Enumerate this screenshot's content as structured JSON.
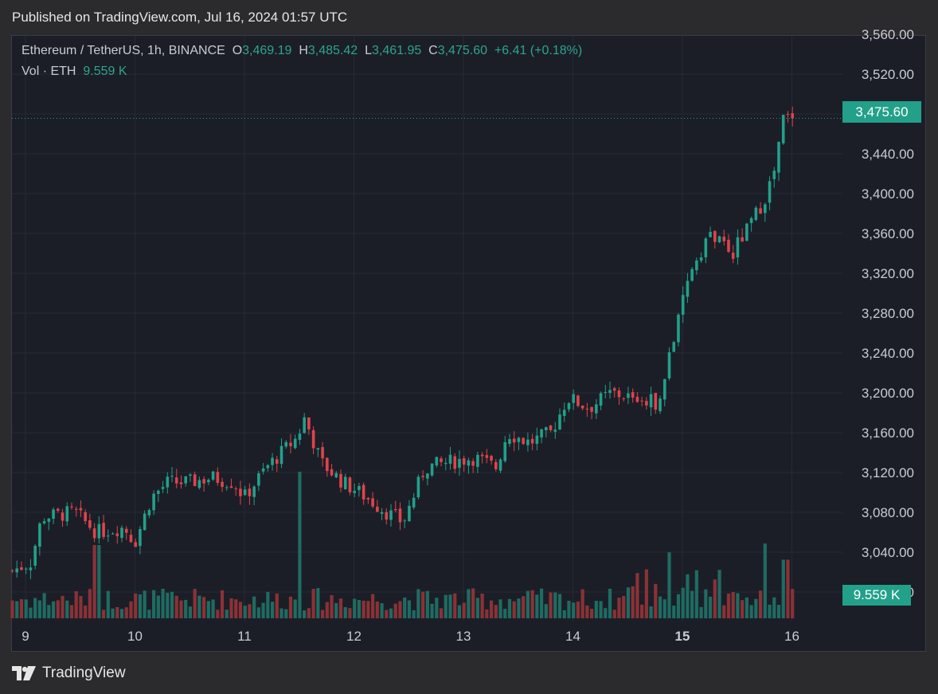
{
  "publish_line": "Published on TradingView.com, Jul 16, 2024 01:57 UTC",
  "legend": {
    "symbol": "Ethereum / TetherUS, 1h, BINANCE",
    "o_label": "O",
    "o_value": "3,469.19",
    "h_label": "H",
    "h_value": "3,485.42",
    "l_label": "L",
    "l_value": "3,461.95",
    "c_label": "C",
    "c_value": "3,475.60",
    "change": "+6.41 (+0.18%)",
    "vol_label": "Vol · ETH",
    "vol_value": "9.559 K"
  },
  "current_price_tag": "3,475.60",
  "volume_tag": "9.559 K",
  "brand": "TradingView",
  "colors": {
    "up": "#22a08a",
    "down": "#e0434b",
    "vol_up": "#1f6b62",
    "vol_down": "#8a3236",
    "grid": "#262a35",
    "axis_text": "#c8cbd2"
  },
  "chart_data": {
    "type": "candlestick",
    "symbol": "Ethereum / TetherUS",
    "interval": "1h",
    "exchange": "BINANCE",
    "x_ticks": [
      "9",
      "10",
      "11",
      "12",
      "13",
      "14",
      "15",
      "16"
    ],
    "y_ticks": [
      "3,560.00",
      "3,520.00",
      "3,480.00",
      "3,440.00",
      "3,400.00",
      "3,360.00",
      "3,320.00",
      "3,280.00",
      "3,240.00",
      "3,200.00",
      "3,160.00",
      "3,120.00",
      "3,080.00",
      "3,040.00",
      "3,000.00"
    ],
    "ylim": [
      2960,
      3560
    ],
    "grid": true,
    "last_close": 3475.6,
    "close_path_keypoints": [
      {
        "day": 8.85,
        "close": 3020
      },
      {
        "day": 9.05,
        "close": 3030
      },
      {
        "day": 9.15,
        "close": 3075
      },
      {
        "day": 9.45,
        "close": 3080
      },
      {
        "day": 9.65,
        "close": 3060
      },
      {
        "day": 9.9,
        "close": 3065
      },
      {
        "day": 10.0,
        "close": 3050
      },
      {
        "day": 10.15,
        "close": 3095
      },
      {
        "day": 10.3,
        "close": 3110
      },
      {
        "day": 10.5,
        "close": 3110
      },
      {
        "day": 10.7,
        "close": 3115
      },
      {
        "day": 10.9,
        "close": 3110
      },
      {
        "day": 11.0,
        "close": 3095
      },
      {
        "day": 11.2,
        "close": 3125
      },
      {
        "day": 11.48,
        "close": 3155
      },
      {
        "day": 11.55,
        "close": 3175
      },
      {
        "day": 11.7,
        "close": 3130
      },
      {
        "day": 11.9,
        "close": 3110
      },
      {
        "day": 12.05,
        "close": 3100
      },
      {
        "day": 12.3,
        "close": 3080
      },
      {
        "day": 12.45,
        "close": 3070
      },
      {
        "day": 12.65,
        "close": 3125
      },
      {
        "day": 12.85,
        "close": 3130
      },
      {
        "day": 13.1,
        "close": 3135
      },
      {
        "day": 13.3,
        "close": 3125
      },
      {
        "day": 13.4,
        "close": 3160
      },
      {
        "day": 13.6,
        "close": 3150
      },
      {
        "day": 13.8,
        "close": 3160
      },
      {
        "day": 13.95,
        "close": 3195
      },
      {
        "day": 14.15,
        "close": 3185
      },
      {
        "day": 14.35,
        "close": 3200
      },
      {
        "day": 14.55,
        "close": 3195
      },
      {
        "day": 14.8,
        "close": 3190
      },
      {
        "day": 14.88,
        "close": 3240
      },
      {
        "day": 14.95,
        "close": 3265
      },
      {
        "day": 15.08,
        "close": 3325
      },
      {
        "day": 15.25,
        "close": 3360
      },
      {
        "day": 15.45,
        "close": 3340
      },
      {
        "day": 15.6,
        "close": 3365
      },
      {
        "day": 15.75,
        "close": 3395
      },
      {
        "day": 15.85,
        "close": 3425
      },
      {
        "day": 15.92,
        "close": 3475
      },
      {
        "day": 16.0,
        "close": 3475.6
      }
    ],
    "volume_spikes": [
      {
        "day": 9.65,
        "volume_rel": 0.5
      },
      {
        "day": 11.5,
        "volume_rel": 1.0
      },
      {
        "day": 14.88,
        "volume_rel": 0.45
      },
      {
        "day": 15.75,
        "volume_rel": 0.51
      },
      {
        "day": 15.95,
        "volume_rel": 0.4
      }
    ]
  }
}
